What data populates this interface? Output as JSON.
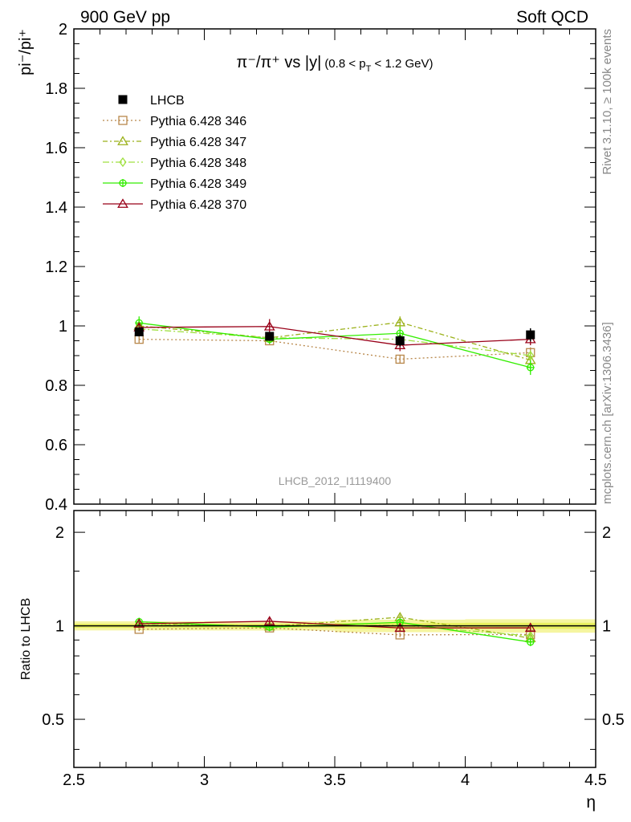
{
  "header": {
    "left": "900 GeV pp",
    "right": "Soft QCD"
  },
  "side_labels": {
    "rivet": "Rivet 3.1.10, ≥ 100k events",
    "mcplots": "mcplots.cern.ch [arXiv:1306.3436]"
  },
  "chart_data": {
    "type": "line",
    "title": "π⁻/π⁺ vs |y| (0.8 < p_T < 1.2 GeV)",
    "title_parts": {
      "main": "π⁻/π⁺ vs |y|",
      "sub_open": "(0.8 < p",
      "sub_T": "T",
      "sub_close": " < 1.2 GeV)"
    },
    "analysis_id": "LHCB_2012_I1119400",
    "ylabel": "pi⁻/pi⁺",
    "ratio_ylabel": "Ratio to LHCB",
    "xlabel": "η",
    "xlim": [
      2.5,
      4.5
    ],
    "ylim": [
      0.4,
      2.0
    ],
    "ratio_ylim": [
      0.35,
      2.35
    ],
    "ratio_yscale": "log",
    "xticks": [
      "2.5",
      "3",
      "3.5",
      "4",
      "4.5"
    ],
    "yticks": [
      "0.4",
      "0.6",
      "0.8",
      "1",
      "1.2",
      "1.4",
      "1.6",
      "1.8",
      "2"
    ],
    "ratio_yticks": [
      "0.5",
      "1",
      "2"
    ],
    "legend_position": "top-left",
    "x": [
      2.75,
      3.25,
      3.75,
      4.25
    ],
    "data": {
      "name": "LHCB",
      "values": [
        0.98,
        0.965,
        0.95,
        0.97
      ],
      "errors": [
        0.015,
        0.015,
        0.02,
        0.022
      ]
    },
    "series": [
      {
        "name": "Pythia 6.428 346",
        "color": "#b8874a",
        "marker": "square",
        "dash": "2,3",
        "values": [
          0.955,
          0.95,
          0.888,
          0.91
        ],
        "errors": [
          0.013,
          0.012,
          0.015,
          0.018
        ]
      },
      {
        "name": "Pythia 6.428 347",
        "color": "#9bb11a",
        "marker": "triangle",
        "dash": "6,3,2,3",
        "values": [
          1.0,
          0.96,
          1.012,
          0.885
        ],
        "errors": [
          0.014,
          0.013,
          0.02,
          0.02
        ]
      },
      {
        "name": "Pythia 6.428 348",
        "color": "#9fe040",
        "marker": "diamond",
        "dash": "8,3,2,3",
        "values": [
          0.99,
          0.96,
          0.955,
          0.9
        ],
        "errors": [
          0.014,
          0.013,
          0.016,
          0.018
        ]
      },
      {
        "name": "Pythia 6.428 349",
        "color": "#33ee00",
        "marker": "cross",
        "dash": "",
        "values": [
          1.01,
          0.955,
          0.975,
          0.86
        ],
        "errors": [
          0.022,
          0.015,
          0.02,
          0.025
        ]
      },
      {
        "name": "Pythia 6.428 370",
        "color": "#990018",
        "marker": "triangle",
        "dash": "",
        "values": [
          0.995,
          0.998,
          0.935,
          0.955
        ],
        "errors": [
          0.016,
          0.025,
          0.02,
          0.02
        ]
      }
    ]
  }
}
